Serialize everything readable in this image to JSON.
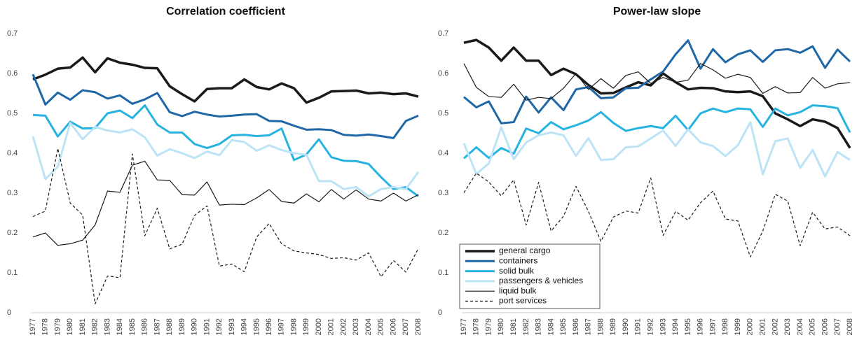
{
  "chart_data": [
    {
      "type": "line",
      "title": "Correlation coefficient",
      "categories": [
        "1977",
        "1978",
        "1979",
        "1980",
        "1981",
        "1982",
        "1983",
        "1984",
        "1985",
        "1986",
        "1987",
        "1988",
        "1989",
        "1990",
        "1991",
        "1992",
        "1993",
        "1994",
        "1995",
        "1996",
        "1997",
        "1998",
        "1999",
        "2000",
        "2001",
        "2002",
        "2003",
        "2004",
        "2005",
        "2006",
        "2007",
        "2008"
      ],
      "ylim": [
        0,
        0.7
      ],
      "yticks": [
        0,
        0.1,
        0.2,
        0.3,
        0.4,
        0.5,
        0.6,
        0.7
      ],
      "series": [
        {
          "name": "general cargo",
          "color": "#1a1a1a",
          "linewidth": 3.5,
          "values": [
            0.585,
            0.597,
            0.612,
            0.615,
            0.64,
            0.603,
            0.638,
            0.627,
            0.622,
            0.614,
            0.613,
            0.568,
            0.548,
            0.53,
            0.561,
            0.563,
            0.563,
            0.585,
            0.566,
            0.56,
            0.575,
            0.563,
            0.527,
            0.539,
            0.555,
            0.556,
            0.557,
            0.55,
            0.552,
            0.548,
            0.55,
            0.542
          ]
        },
        {
          "name": "containers",
          "color": "#1f67a6",
          "linewidth": 3,
          "values": [
            0.598,
            0.522,
            0.552,
            0.534,
            0.558,
            0.553,
            0.537,
            0.545,
            0.524,
            0.535,
            0.551,
            0.503,
            0.493,
            0.504,
            0.497,
            0.492,
            0.494,
            0.497,
            0.498,
            0.481,
            0.48,
            0.469,
            0.459,
            0.46,
            0.458,
            0.446,
            0.444,
            0.447,
            0.443,
            0.438,
            0.481,
            0.494
          ]
        },
        {
          "name": "solid bulk",
          "color": "#27b3e0",
          "linewidth": 3,
          "values": [
            0.496,
            0.494,
            0.442,
            0.479,
            0.462,
            0.463,
            0.5,
            0.507,
            0.488,
            0.52,
            0.472,
            0.452,
            0.452,
            0.423,
            0.413,
            0.423,
            0.445,
            0.446,
            0.443,
            0.445,
            0.462,
            0.383,
            0.397,
            0.435,
            0.39,
            0.381,
            0.38,
            0.373,
            0.34,
            0.31,
            0.315,
            0.292
          ]
        },
        {
          "name": "passengers & vehicles",
          "color": "#bde3f6",
          "linewidth": 3,
          "values": [
            0.442,
            0.335,
            0.366,
            0.476,
            0.435,
            0.466,
            0.457,
            0.452,
            0.46,
            0.44,
            0.394,
            0.41,
            0.4,
            0.388,
            0.404,
            0.395,
            0.433,
            0.428,
            0.406,
            0.42,
            0.408,
            0.4,
            0.396,
            0.33,
            0.33,
            0.31,
            0.315,
            0.292,
            0.31,
            0.315,
            0.31,
            0.353
          ]
        },
        {
          "name": "liquid bulk",
          "color": "#1a1a1a",
          "linewidth": 1.2,
          "values": [
            0.19,
            0.2,
            0.169,
            0.173,
            0.182,
            0.22,
            0.305,
            0.302,
            0.37,
            0.38,
            0.333,
            0.332,
            0.296,
            0.295,
            0.328,
            0.27,
            0.272,
            0.271,
            0.288,
            0.309,
            0.279,
            0.275,
            0.298,
            0.278,
            0.309,
            0.285,
            0.308,
            0.285,
            0.28,
            0.3,
            0.28,
            0.296
          ]
        },
        {
          "name": "port services",
          "color": "#1a1a1a",
          "linewidth": 1.2,
          "dashed": true,
          "values": [
            0.241,
            0.255,
            0.412,
            0.275,
            0.245,
            0.022,
            0.092,
            0.088,
            0.398,
            0.193,
            0.262,
            0.16,
            0.172,
            0.244,
            0.268,
            0.117,
            0.122,
            0.103,
            0.19,
            0.224,
            0.173,
            0.155,
            0.15,
            0.146,
            0.136,
            0.138,
            0.132,
            0.15,
            0.09,
            0.131,
            0.102,
            0.161
          ]
        }
      ]
    },
    {
      "type": "line",
      "title": "Power-law slope",
      "legend": "lower left",
      "categories": [
        "1977",
        "1978",
        "1979",
        "1980",
        "1981",
        "1982",
        "1983",
        "1984",
        "1985",
        "1986",
        "1987",
        "1988",
        "1989",
        "1990",
        "1991",
        "1992",
        "1993",
        "1994",
        "1995",
        "1996",
        "1997",
        "1998",
        "1999",
        "2000",
        "2001",
        "2002",
        "2003",
        "2004",
        "2005",
        "2006",
        "2007",
        "2008"
      ],
      "ylim": [
        0,
        0.7
      ],
      "yticks": [
        0,
        0.1,
        0.2,
        0.3,
        0.4,
        0.5,
        0.6,
        0.7
      ],
      "series": [
        {
          "name": "general cargo",
          "color": "#1a1a1a",
          "linewidth": 3.5,
          "values": [
            0.677,
            0.684,
            0.665,
            0.632,
            0.665,
            0.632,
            0.632,
            0.596,
            0.612,
            0.598,
            0.571,
            0.55,
            0.551,
            0.565,
            0.578,
            0.57,
            0.6,
            0.578,
            0.56,
            0.564,
            0.563,
            0.555,
            0.553,
            0.555,
            0.543,
            0.5,
            0.485,
            0.468,
            0.485,
            0.479,
            0.463,
            0.413
          ]
        },
        {
          "name": "containers",
          "color": "#1f67a6",
          "linewidth": 3,
          "values": [
            0.541,
            0.515,
            0.53,
            0.475,
            0.478,
            0.542,
            0.502,
            0.54,
            0.508,
            0.56,
            0.566,
            0.538,
            0.54,
            0.563,
            0.564,
            0.585,
            0.605,
            0.648,
            0.683,
            0.612,
            0.661,
            0.628,
            0.648,
            0.658,
            0.629,
            0.658,
            0.661,
            0.652,
            0.668,
            0.614,
            0.66,
            0.63
          ]
        },
        {
          "name": "solid bulk",
          "color": "#27b3e0",
          "linewidth": 3,
          "values": [
            0.387,
            0.415,
            0.388,
            0.413,
            0.399,
            0.462,
            0.45,
            0.478,
            0.46,
            0.47,
            0.482,
            0.503,
            0.476,
            0.456,
            0.463,
            0.468,
            0.463,
            0.494,
            0.458,
            0.5,
            0.512,
            0.503,
            0.512,
            0.51,
            0.466,
            0.512,
            0.495,
            0.503,
            0.52,
            0.518,
            0.513,
            0.452
          ]
        },
        {
          "name": "passengers & vehicles",
          "color": "#bde3f6",
          "linewidth": 3,
          "values": [
            0.425,
            0.348,
            0.374,
            0.465,
            0.385,
            0.427,
            0.445,
            0.452,
            0.445,
            0.393,
            0.438,
            0.383,
            0.385,
            0.415,
            0.417,
            0.437,
            0.457,
            0.418,
            0.46,
            0.427,
            0.418,
            0.393,
            0.42,
            0.478,
            0.347,
            0.43,
            0.437,
            0.363,
            0.408,
            0.342,
            0.403,
            0.383
          ]
        },
        {
          "name": "liquid bulk",
          "color": "#1a1a1a",
          "linewidth": 1.2,
          "values": [
            0.625,
            0.565,
            0.542,
            0.54,
            0.573,
            0.533,
            0.54,
            0.537,
            0.563,
            0.6,
            0.56,
            0.587,
            0.563,
            0.595,
            0.604,
            0.575,
            0.59,
            0.578,
            0.583,
            0.625,
            0.609,
            0.588,
            0.598,
            0.59,
            0.55,
            0.567,
            0.551,
            0.552,
            0.59,
            0.563,
            0.574,
            0.577
          ]
        },
        {
          "name": "port services",
          "color": "#1a1a1a",
          "linewidth": 1.2,
          "dashed": true,
          "values": [
            0.301,
            0.35,
            0.328,
            0.293,
            0.333,
            0.22,
            0.327,
            0.205,
            0.242,
            0.317,
            0.254,
            0.179,
            0.24,
            0.255,
            0.25,
            0.338,
            0.194,
            0.254,
            0.232,
            0.276,
            0.305,
            0.235,
            0.23,
            0.14,
            0.205,
            0.297,
            0.28,
            0.168,
            0.252,
            0.21,
            0.215,
            0.193
          ]
        }
      ]
    }
  ]
}
